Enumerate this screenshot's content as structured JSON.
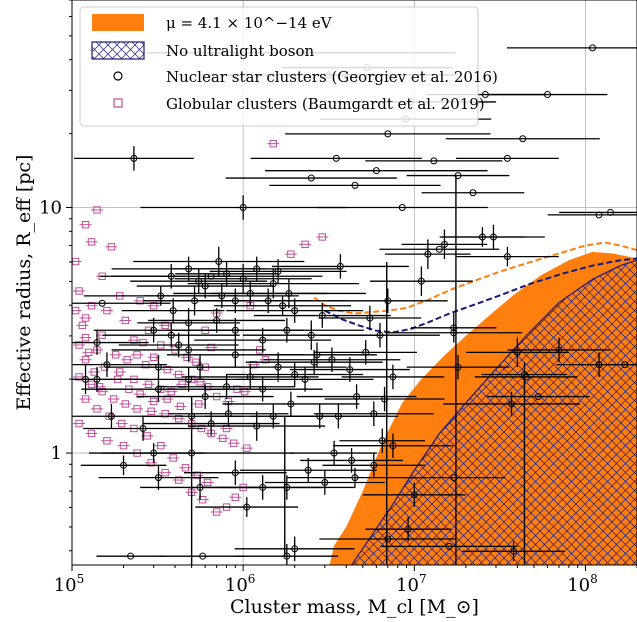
{
  "chart_data": {
    "type": "scatter",
    "xscale": "log",
    "yscale": "log",
    "xlim": [
      100000,
      200000000
    ],
    "ylim": [
      0.35,
      70
    ],
    "grid": true,
    "legend_position": "top-left",
    "xlabel": "Cluster mass, M_cl [M_⊙]",
    "ylabel": "Effective radius, R_eff [pc]",
    "x_ticks": [
      {
        "value": 100000,
        "label": "10^5"
      },
      {
        "value": 1000000,
        "label": "10^6"
      },
      {
        "value": 10000000,
        "label": "10^7"
      },
      {
        "value": 100000000,
        "label": "10^8"
      }
    ],
    "y_ticks": [
      {
        "value": 1,
        "label": "1"
      },
      {
        "value": 10,
        "label": "10"
      }
    ],
    "colors": {
      "ultralight": "#ff7f0e",
      "no_boson": "#1a1a7a",
      "nsc": "#000000",
      "gc": "#c0509a"
    },
    "legend": [
      {
        "key": "ultralight",
        "label": "μ = 4.1 × 10^−14 eV"
      },
      {
        "key": "no_boson",
        "label": "No ultralight boson"
      },
      {
        "key": "nsc",
        "label": "Nuclear star clusters (Georgiev et al. 2016)"
      },
      {
        "key": "gc",
        "label": "Globular clusters (Baumgardt et al. 2019)"
      }
    ],
    "region_ultralight_bound": [
      [
        3200000,
        0.35
      ],
      [
        3400000,
        0.42
      ],
      [
        4000000,
        0.5
      ],
      [
        5000000,
        0.7
      ],
      [
        6500000,
        1.1
      ],
      [
        8500000,
        1.6
      ],
      [
        11000000,
        2.0
      ],
      [
        15000000,
        2.5
      ],
      [
        20000000,
        3.0
      ],
      [
        27000000,
        3.6
      ],
      [
        38000000,
        4.4
      ],
      [
        55000000,
        5.3
      ],
      [
        80000000,
        6.1
      ],
      [
        110000000,
        6.6
      ],
      [
        145000000,
        6.5
      ],
      [
        200000000,
        6.2
      ]
    ],
    "region_no_boson_bound": [
      [
        4300000,
        0.35
      ],
      [
        5500000,
        0.45
      ],
      [
        7500000,
        0.62
      ],
      [
        10000000,
        0.85
      ],
      [
        14000000,
        1.2
      ],
      [
        20000000,
        1.6
      ],
      [
        30000000,
        2.2
      ],
      [
        45000000,
        3.0
      ],
      [
        70000000,
        4.1
      ],
      [
        110000000,
        5.1
      ],
      [
        160000000,
        5.8
      ],
      [
        200000000,
        6.1
      ]
    ],
    "dashed_ultralight": [
      [
        2600000,
        4.3
      ],
      [
        3000000,
        4.0
      ],
      [
        3600000,
        3.8
      ],
      [
        4500000,
        3.7
      ],
      [
        5500000,
        3.75
      ],
      [
        7000000,
        3.8
      ],
      [
        9000000,
        3.9
      ],
      [
        12000000,
        4.2
      ],
      [
        16000000,
        4.6
      ],
      [
        22000000,
        5.0
      ],
      [
        32000000,
        5.5
      ],
      [
        48000000,
        6.0
      ],
      [
        70000000,
        6.5
      ],
      [
        100000000,
        7.0
      ],
      [
        130000000,
        7.2
      ],
      [
        160000000,
        7.0
      ],
      [
        200000000,
        6.7
      ]
    ],
    "dashed_no_boson": [
      [
        3000000,
        3.8
      ],
      [
        3800000,
        3.5
      ],
      [
        4800000,
        3.3
      ],
      [
        6000000,
        3.15
      ],
      [
        7500000,
        3.1
      ],
      [
        9500000,
        3.2
      ],
      [
        12000000,
        3.4
      ],
      [
        16000000,
        3.7
      ],
      [
        22000000,
        4.0
      ],
      [
        32000000,
        4.4
      ],
      [
        48000000,
        4.9
      ],
      [
        75000000,
        5.4
      ],
      [
        110000000,
        5.8
      ],
      [
        160000000,
        6.1
      ],
      [
        200000000,
        6.2
      ]
    ],
    "nsc": [
      [
        2200000,
        1.63,
        1.8,
        0.0
      ],
      [
        8900000,
        1.36,
        1.0,
        0.0
      ],
      [
        3150000,
        1.54,
        1.5,
        0.0
      ],
      [
        5300000,
        1.57,
        1.0,
        0.0
      ],
      [
        9500000,
        1.43,
        1.0,
        0.0
      ],
      [
        7000000,
        1.3,
        1.2,
        0.0
      ],
      [
        6000000,
        1.15,
        1.3,
        0.0
      ],
      [
        8500000,
        1.0,
        1.0,
        0.0
      ],
      [
        4500000,
        1.09,
        1.0,
        0.0
      ],
      [
        2500000,
        1.12,
        1.0,
        0.0
      ],
      [
        3500000,
        1.2,
        1.0,
        0.0
      ],
      [
        1000000,
        1.0,
        1.2,
        0.05
      ],
      [
        650000,
        0.72,
        1.3,
        0.0
      ],
      [
        230000,
        1.2,
        0.7,
        0.05
      ],
      [
        150000,
        0.61,
        0.8,
        0.0
      ],
      [
        720000,
        0.78,
        1.0,
        0.06
      ],
      [
        1200000,
        0.75,
        1.0,
        0.05
      ],
      [
        1500000,
        0.69,
        1.0,
        0.06
      ],
      [
        1850000,
        0.65,
        0.9,
        0.06
      ],
      [
        900000,
        0.62,
        0.9,
        0.05
      ],
      [
        480000,
        0.75,
        0.9,
        0.05
      ],
      [
        550000,
        0.7,
        0.8,
        0.05
      ],
      [
        600000,
        0.68,
        0.8,
        0.05
      ],
      [
        750000,
        0.64,
        0.9,
        0.05
      ],
      [
        1100000,
        0.65,
        0.9,
        0.05
      ],
      [
        1400000,
        0.62,
        0.9,
        0.05
      ],
      [
        1700000,
        0.6,
        0.8,
        0.04
      ],
      [
        380000,
        0.48,
        0.8,
        0.05
      ],
      [
        480000,
        0.42,
        0.9,
        0.05
      ],
      [
        560000,
        0.35,
        0.7,
        0.05
      ],
      [
        700000,
        0.54,
        0.8,
        0.05
      ],
      [
        900000,
        0.5,
        0.8,
        0.05
      ],
      [
        1300000,
        0.46,
        0.8,
        0.05
      ],
      [
        1800000,
        0.5,
        0.9,
        0.05
      ],
      [
        2500000,
        0.48,
        0.8,
        0.06
      ],
      [
        2900000,
        0.56,
        0.8,
        0.05
      ],
      [
        3300000,
        0.38,
        0.8,
        0.05
      ],
      [
        2700000,
        0.4,
        0.7,
        0.05
      ],
      [
        330000,
        0.64,
        0.9,
        0.04
      ],
      [
        380000,
        0.72,
        0.7,
        0.05
      ],
      [
        320000,
        0.26,
        0.9,
        0.05
      ],
      [
        480000,
        0.3,
        0.8,
        0.05
      ],
      [
        600000,
        0.23,
        0.8,
        0.05
      ],
      [
        800000,
        0.27,
        0.8,
        0.05
      ],
      [
        1100000,
        0.31,
        0.8,
        0.05
      ],
      [
        1300000,
        0.26,
        0.7,
        0.05
      ],
      [
        1600000,
        0.35,
        0.8,
        0.06
      ],
      [
        2000000,
        0.32,
        0.8,
        0.05
      ],
      [
        2300000,
        0.3,
        0.8,
        0.05
      ],
      [
        2600000,
        0.37,
        0.8,
        0.05
      ],
      [
        1900000,
        0.2,
        0.8,
        0.05
      ],
      [
        1500000,
        0.15,
        0.8,
        0.05
      ],
      [
        1200000,
        0.11,
        0.8,
        0.06
      ],
      [
        820000,
        0.16,
        0.7,
        0.05
      ],
      [
        650000,
        0.12,
        0.8,
        0.05
      ],
      [
        500000,
        0.15,
        0.6,
        0.06
      ],
      [
        2800000,
        0.15,
        0.8,
        0.05
      ],
      [
        4600000,
        0.23,
        0.7,
        0.05
      ],
      [
        3600000,
        0.15,
        0.7,
        0.05
      ],
      [
        4200000,
        0.34,
        0.7,
        0.05
      ],
      [
        5200000,
        0.41,
        0.6,
        0.05
      ],
      [
        6300000,
        0.48,
        0.7,
        0.05
      ],
      [
        5500000,
        0.55,
        0.6,
        0.05
      ],
      [
        7000000,
        0.62,
        0.7,
        0.05
      ],
      [
        11000000,
        0.7,
        0.6,
        0.06
      ],
      [
        12000000,
        0.81,
        0.5,
        0.06
      ],
      [
        17000000,
        0.51,
        0.5,
        0.06
      ],
      [
        25000000,
        0.88,
        0.5,
        0.04
      ],
      [
        44000000,
        0.32,
        0.5,
        0.05
      ],
      [
        40000000,
        0.41,
        0.6,
        0.06
      ],
      [
        70000000,
        0.42,
        0.6,
        0.05
      ],
      [
        120000000,
        0.36,
        0.5,
        0.05
      ],
      [
        500000,
        0.0,
        1.2,
        0.05
      ],
      [
        200000,
        -0.05,
        0.5,
        0.04
      ],
      [
        320000,
        -0.1,
        0.7,
        0.05
      ],
      [
        560000,
        -0.14,
        0.7,
        0.05
      ],
      [
        900000,
        -0.08,
        0.6,
        0.05
      ],
      [
        1300000,
        -0.14,
        0.7,
        0.05
      ],
      [
        1800000,
        -0.14,
        0.8,
        0.05
      ],
      [
        2400000,
        -0.07,
        0.8,
        0.05
      ],
      [
        3000000,
        -0.12,
        0.7,
        0.05
      ],
      [
        4300000,
        -0.03,
        0.6,
        0.05
      ],
      [
        5800000,
        -0.05,
        0.6,
        0.05
      ],
      [
        7500000,
        0.03,
        0.7,
        0.05
      ],
      [
        2000000,
        -0.39,
        0.7,
        0.05
      ],
      [
        1800000,
        -0.42,
        0.6,
        0.05
      ],
      [
        580000,
        -0.42,
        0.5,
        0.0
      ],
      [
        1050000,
        -0.22,
        0.6,
        0.04
      ],
      [
        220000,
        -0.42,
        0.4,
        0.0
      ],
      [
        900000,
        0.4,
        0.8,
        0.05
      ],
      [
        2000000,
        0.58,
        0.8,
        0.05
      ],
      [
        5800000,
        0.16,
        0.7,
        0.05
      ],
      [
        6700000,
        0.22,
        0.7,
        0.05
      ],
      [
        7500000,
        0.31,
        0.6,
        0.05
      ],
      [
        320000,
        0.35,
        0.6,
        0.05
      ],
      [
        390000,
        0.58,
        0.6,
        0.05
      ],
      [
        260000,
        0.1,
        0.7,
        0.05
      ],
      [
        140000,
        0.3,
        0.6,
        0.05
      ],
      [
        120000,
        0.3,
        0.6,
        0.06
      ],
      [
        160000,
        0.36,
        0.7,
        0.05
      ],
      [
        140000,
        0.45,
        0.6,
        0.05
      ],
      [
        170000,
        0.15,
        0.6,
        0.05
      ],
      [
        300000,
        0.5,
        0.7,
        0.05
      ],
      [
        420000,
        0.44,
        0.7,
        0.05
      ],
      [
        480000,
        0.53,
        0.6,
        0.06
      ],
      [
        520000,
        0.62,
        0.6,
        0.06
      ],
      [
        1000000,
        0.71,
        0.8,
        0.06
      ],
      [
        1600000,
        0.74,
        0.8,
        0.05
      ],
      [
        3700000,
        0.76,
        0.8,
        0.05
      ],
      [
        18000000,
        1.13,
        0.6,
        0.0
      ],
      [
        13000000,
        1.19,
        0.8,
        0.0
      ],
      [
        22000000,
        1.06,
        0.6,
        0.0
      ],
      [
        43000000,
        1.28,
        0.9,
        0.0
      ],
      [
        35000000,
        1.2,
        0.6,
        0.0
      ],
      [
        26000000,
        1.46,
        0.7,
        0.0
      ],
      [
        110000000,
        1.65,
        1.0,
        0.0
      ],
      [
        60000000,
        1.46,
        0.7,
        0.0
      ],
      [
        120000000,
        0.97,
        0.6,
        0.0
      ],
      [
        140000000,
        0.98,
        0.6,
        0.0
      ],
      [
        14000000,
        0.83,
        0.7,
        0.0
      ],
      [
        17000000,
        0.49,
        0.8,
        0.0
      ],
      [
        18000000,
        0.35,
        0.6,
        0.05
      ],
      [
        15000000,
        0.85,
        0.5,
        0.06
      ],
      [
        35000000,
        0.8,
        0.6,
        0.04
      ],
      [
        800000,
        0.73,
        0.6,
        0.05
      ],
      [
        4500000,
        -0.1,
        0.8,
        0.04
      ],
      [
        10000000,
        -0.17,
        0.6,
        0.05
      ],
      [
        37000000,
        0.2,
        0.8,
        0.05
      ],
      [
        29000000,
        0.88,
        0.6,
        0.05
      ],
      [
        17000000,
        -0.1,
        0.6,
        0.0
      ],
      [
        6500000,
        0.05,
        0.5,
        0.05
      ],
      [
        3400000,
        0.0,
        0.5,
        0.05
      ],
      [
        7000000,
        -0.35,
        0.8,
        0.0
      ],
      [
        9200000,
        -0.31,
        0.5,
        0.05
      ],
      [
        16000000,
        -0.38,
        0.8,
        0.0
      ],
      [
        38000000,
        -0.4,
        0.6,
        0.04
      ],
      [
        45000000,
        0.31,
        0.6,
        0.0
      ],
      [
        53000000,
        0.23,
        0.6,
        0.0
      ],
      [
        170000000,
        0.36,
        0.5,
        0.0
      ],
      [
        300000,
        0.0,
        0.6,
        0.04
      ]
    ],
    "gc": [
      [
        140000,
        0.99
      ],
      [
        120000,
        0.93
      ],
      [
        130000,
        0.86
      ],
      [
        170000,
        0.84
      ],
      [
        105000,
        0.78
      ],
      [
        150000,
        0.72
      ],
      [
        110000,
        0.66
      ],
      [
        190000,
        0.64
      ],
      [
        250000,
        0.62
      ],
      [
        130000,
        0.6
      ],
      [
        160000,
        0.58
      ],
      [
        205000,
        0.54
      ],
      [
        120000,
        0.55
      ],
      [
        280000,
        0.5
      ],
      [
        300000,
        0.6
      ],
      [
        350000,
        0.52
      ],
      [
        330000,
        0.44
      ],
      [
        260000,
        0.45
      ],
      [
        230000,
        0.46
      ],
      [
        150000,
        0.48
      ],
      [
        120000,
        0.47
      ],
      [
        110000,
        0.44
      ],
      [
        140000,
        0.42
      ],
      [
        180000,
        0.4
      ],
      [
        210000,
        0.38
      ],
      [
        240000,
        0.4
      ],
      [
        270000,
        0.36
      ],
      [
        300000,
        0.39
      ],
      [
        360000,
        0.34
      ],
      [
        420000,
        0.32
      ],
      [
        470000,
        0.39
      ],
      [
        530000,
        0.37
      ],
      [
        600000,
        0.35
      ],
      [
        650000,
        0.43
      ],
      [
        400000,
        0.42
      ],
      [
        120000,
        0.38
      ],
      [
        155000,
        0.35
      ],
      [
        190000,
        0.33
      ],
      [
        230000,
        0.3
      ],
      [
        280000,
        0.28
      ],
      [
        330000,
        0.26
      ],
      [
        380000,
        0.25
      ],
      [
        440000,
        0.28
      ],
      [
        500000,
        0.3
      ],
      [
        560000,
        0.29
      ],
      [
        620000,
        0.27
      ],
      [
        700000,
        0.23
      ],
      [
        820000,
        0.21
      ],
      [
        920000,
        0.26
      ],
      [
        1020000,
        0.25
      ],
      [
        1150000,
        0.36
      ],
      [
        1250000,
        0.42
      ],
      [
        1350000,
        0.38
      ],
      [
        110000,
        0.31
      ],
      [
        130000,
        0.28
      ],
      [
        150000,
        0.25
      ],
      [
        175000,
        0.22
      ],
      [
        205000,
        0.2
      ],
      [
        240000,
        0.18
      ],
      [
        290000,
        0.17
      ],
      [
        350000,
        0.16
      ],
      [
        420000,
        0.14
      ],
      [
        500000,
        0.12
      ],
      [
        570000,
        0.1
      ],
      [
        650000,
        0.08
      ],
      [
        760000,
        0.06
      ],
      [
        880000,
        0.04
      ],
      [
        1050000,
        0.02
      ],
      [
        120000,
        0.22
      ],
      [
        140000,
        0.18
      ],
      [
        165000,
        0.15
      ],
      [
        195000,
        0.12
      ],
      [
        230000,
        0.1
      ],
      [
        275000,
        0.07
      ],
      [
        330000,
        0.03
      ],
      [
        390000,
        -0.02
      ],
      [
        460000,
        -0.06
      ],
      [
        540000,
        -0.09
      ],
      [
        620000,
        -0.12
      ],
      [
        110000,
        0.12
      ],
      [
        130000,
        0.08
      ],
      [
        160000,
        0.05
      ],
      [
        200000,
        0.03
      ],
      [
        240000,
        0.0
      ],
      [
        290000,
        -0.04
      ],
      [
        350000,
        -0.08
      ],
      [
        420000,
        -0.11
      ],
      [
        500000,
        -0.16
      ],
      [
        580000,
        -0.19
      ],
      [
        700000,
        -0.24
      ],
      [
        800000,
        -0.22
      ],
      [
        900000,
        -0.18
      ],
      [
        1000000,
        -0.14
      ],
      [
        600000,
        0.5
      ],
      [
        700000,
        0.57
      ],
      [
        550000,
        0.2
      ],
      [
        800000,
        0.1
      ],
      [
        1100000,
        0.6
      ],
      [
        1500000,
        1.26
      ],
      [
        2300000,
        0.85
      ],
      [
        2900000,
        0.88
      ],
      [
        1900000,
        0.81
      ],
      [
        105000,
        0.58
      ],
      [
        115000,
        0.52
      ],
      [
        125000,
        0.41
      ],
      [
        135000,
        0.33
      ],
      [
        145000,
        0.27
      ],
      [
        185000,
        0.3
      ],
      [
        215000,
        0.26
      ],
      [
        250000,
        0.24
      ],
      [
        300000,
        0.21
      ],
      [
        360000,
        0.22
      ],
      [
        430000,
        0.19
      ]
    ],
    "annotations": []
  }
}
